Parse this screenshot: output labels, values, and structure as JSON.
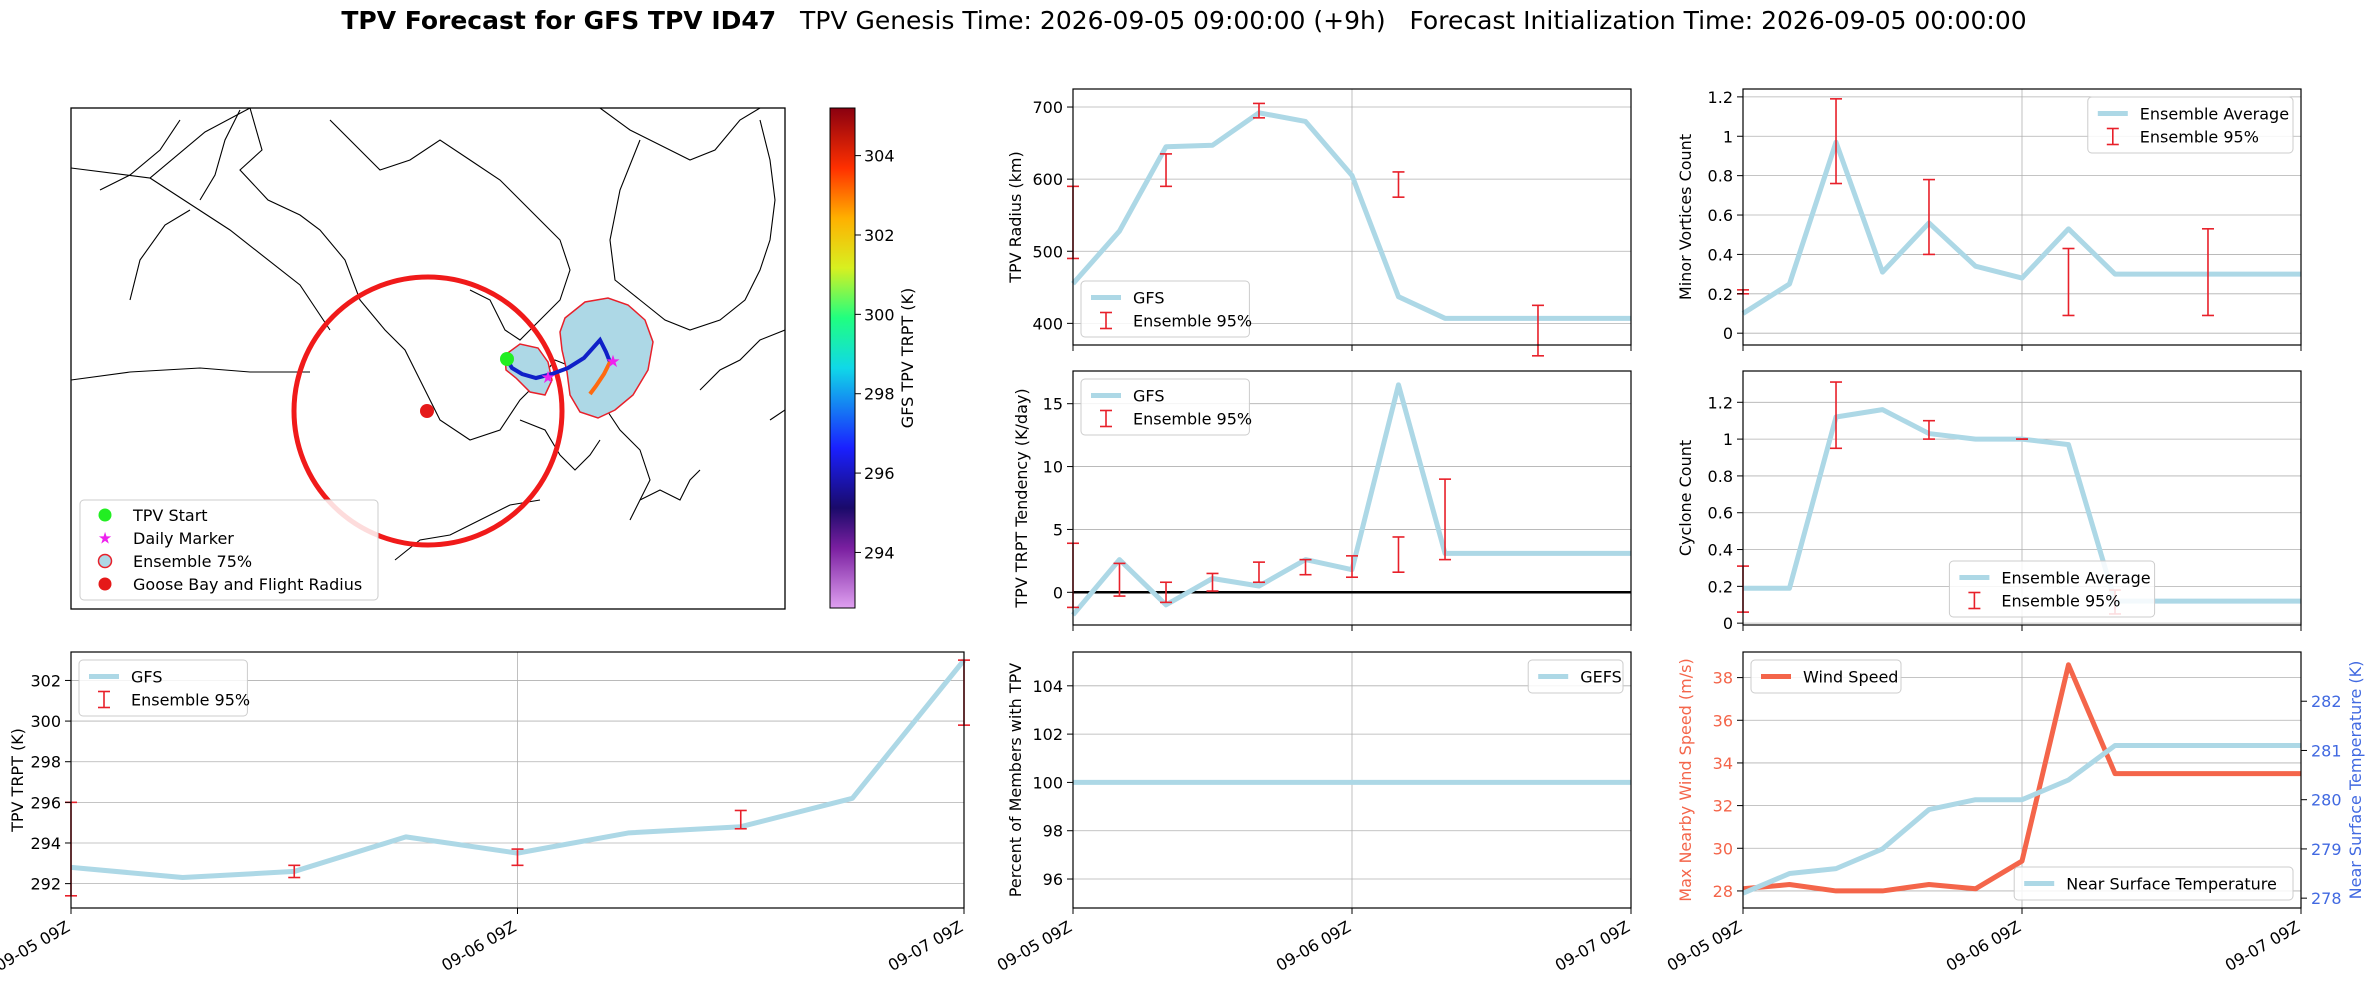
{
  "header": {
    "title": "TPV Forecast for GFS TPV ID47",
    "genesis": "TPV Genesis Time: 2026-09-05 09:00:00 (+9h)",
    "init": "Forecast Initialization Time: 2026-09-05 00:00:00"
  },
  "colors": {
    "gfs_line": "#add8e6",
    "errorbar": "#e8202a",
    "wind": "#f4654a",
    "temp_axis": "#4169e1",
    "goose_circle": "#f01a1a",
    "ensemble_fill": "#add8e6",
    "tpv_start": "#22ee22",
    "daily_marker": "#ee22ee"
  },
  "map": {
    "legend": [
      "TPV Start",
      "Daily Marker",
      "Ensemble 75%",
      "Goose Bay and Flight Radius"
    ],
    "colorbar_label": "GFS TPV TRPT (K)",
    "colorbar_ticks": [
      "304",
      "302",
      "300",
      "298",
      "296",
      "294"
    ]
  },
  "chart_data": [
    {
      "id": "radius",
      "type": "line",
      "ylabel": "TPV Radius (km)",
      "yticks": [
        400,
        500,
        600,
        700
      ],
      "ylim": [
        370,
        725
      ],
      "xlim": [
        0,
        1
      ],
      "xticks": [
        0,
        0.5,
        1
      ],
      "xticklabels": [
        "09-05 09Z",
        "09-06 09Z",
        "09-07 09Z"
      ],
      "show_xticklabels": false,
      "legend": [
        "GFS",
        "Ensemble 95%"
      ],
      "legend_loc": "lower left",
      "series": [
        {
          "name": "GFS",
          "x": [
            0,
            0.0833,
            0.1667,
            0.25,
            0.3333,
            0.4167,
            0.5,
            0.5833,
            0.6667,
            0.75,
            0.8333,
            0.9167,
            1.0
          ],
          "values": [
            455,
            528,
            645,
            647,
            692,
            680,
            605,
            437,
            407,
            407,
            407,
            407,
            407
          ]
        }
      ],
      "errorbars": [
        {
          "x": 0.0,
          "lo": 490,
          "hi": 590
        },
        {
          "x": 0.1667,
          "lo": 590,
          "hi": 635
        },
        {
          "x": 0.3333,
          "lo": 685,
          "hi": 705
        },
        {
          "x": 0.5833,
          "lo": 575,
          "hi": 610
        },
        {
          "x": 0.8333,
          "lo": 355,
          "hi": 425
        }
      ]
    },
    {
      "id": "minor",
      "type": "line",
      "ylabel": "Minor Vortices Count",
      "yticks": [
        0.0,
        0.2,
        0.4,
        0.6,
        0.8,
        1.0,
        1.2
      ],
      "ylim": [
        -0.06,
        1.24
      ],
      "xlim": [
        0,
        1
      ],
      "xticks": [
        0,
        0.5,
        1
      ],
      "xticklabels": [
        "09-05 09Z",
        "09-06 09Z",
        "09-07 09Z"
      ],
      "show_xticklabels": false,
      "legend": [
        "Ensemble Average",
        "Ensemble 95%"
      ],
      "legend_loc": "upper right",
      "series": [
        {
          "name": "Ensemble Average",
          "x": [
            0,
            0.0833,
            0.1667,
            0.25,
            0.3333,
            0.4167,
            0.5,
            0.5833,
            0.6667,
            0.75,
            0.8333,
            0.9167,
            1.0
          ],
          "values": [
            0.1,
            0.25,
            0.97,
            0.31,
            0.56,
            0.34,
            0.28,
            0.53,
            0.3,
            0.3,
            0.3,
            0.3,
            0.3
          ]
        }
      ],
      "errorbars": [
        {
          "x": 0.0,
          "lo": 0.2,
          "hi": 0.22
        },
        {
          "x": 0.1667,
          "lo": 0.76,
          "hi": 1.19
        },
        {
          "x": 0.3333,
          "lo": 0.4,
          "hi": 0.78
        },
        {
          "x": 0.5833,
          "lo": 0.09,
          "hi": 0.43
        },
        {
          "x": 0.8333,
          "lo": 0.09,
          "hi": 0.53
        }
      ]
    },
    {
      "id": "tendency",
      "type": "line",
      "ylabel": "TPV TRPT Tendency (K/day)",
      "yticks": [
        0,
        5,
        10,
        15
      ],
      "ylim": [
        -2.6,
        17.6
      ],
      "xlim": [
        0,
        1
      ],
      "xticks": [
        0,
        0.5,
        1
      ],
      "xticklabels": [
        "09-05 09Z",
        "09-06 09Z",
        "09-07 09Z"
      ],
      "show_xticklabels": false,
      "zero_line": true,
      "legend": [
        "GFS",
        "Ensemble 95%"
      ],
      "legend_loc": "upper left",
      "series": [
        {
          "name": "GFS",
          "x": [
            0,
            0.0833,
            0.1667,
            0.25,
            0.3333,
            0.4167,
            0.5,
            0.5833,
            0.6667,
            0.75,
            0.8333,
            0.9167,
            1.0
          ],
          "values": [
            -1.8,
            2.6,
            -1.0,
            1.1,
            0.5,
            2.6,
            1.8,
            16.5,
            3.1,
            3.1,
            3.1,
            3.1,
            3.1
          ]
        }
      ],
      "errorbars": [
        {
          "x": 0.0,
          "lo": -1.2,
          "hi": 3.9
        },
        {
          "x": 0.0833,
          "lo": -0.3,
          "hi": 2.3
        },
        {
          "x": 0.1667,
          "lo": -0.8,
          "hi": 0.8
        },
        {
          "x": 0.25,
          "lo": 0.1,
          "hi": 1.5
        },
        {
          "x": 0.3333,
          "lo": 0.8,
          "hi": 2.4
        },
        {
          "x": 0.4167,
          "lo": 1.4,
          "hi": 2.6
        },
        {
          "x": 0.5,
          "lo": 1.2,
          "hi": 2.9
        },
        {
          "x": 0.5833,
          "lo": 1.6,
          "hi": 4.4
        },
        {
          "x": 0.6667,
          "lo": 2.6,
          "hi": 9.0
        }
      ]
    },
    {
      "id": "cyclone",
      "type": "line",
      "ylabel": "Cyclone Count",
      "yticks": [
        0.0,
        0.2,
        0.4,
        0.6,
        0.8,
        1.0,
        1.2
      ],
      "ylim": [
        -0.01,
        1.37
      ],
      "xlim": [
        0,
        1
      ],
      "xticks": [
        0,
        0.5,
        1
      ],
      "xticklabels": [
        "09-05 09Z",
        "09-06 09Z",
        "09-07 09Z"
      ],
      "show_xticklabels": false,
      "legend": [
        "Ensemble Average",
        "Ensemble 95%"
      ],
      "legend_loc": "lower center",
      "series": [
        {
          "name": "Ensemble Average",
          "x": [
            0,
            0.0833,
            0.1667,
            0.25,
            0.3333,
            0.4167,
            0.5,
            0.5833,
            0.6667,
            0.75,
            0.8333,
            0.9167,
            1.0
          ],
          "values": [
            0.19,
            0.19,
            1.12,
            1.16,
            1.03,
            1.0,
            1.0,
            0.97,
            0.12,
            0.12,
            0.12,
            0.12,
            0.12
          ]
        }
      ],
      "errorbars": [
        {
          "x": 0.0,
          "lo": 0.06,
          "hi": 0.31
        },
        {
          "x": 0.1667,
          "lo": 0.95,
          "hi": 1.31
        },
        {
          "x": 0.3333,
          "lo": 1.0,
          "hi": 1.1
        },
        {
          "x": 0.5,
          "lo": 1.0,
          "hi": 1.0
        },
        {
          "x": 0.6667,
          "lo": 0.05,
          "hi": 0.18
        }
      ]
    },
    {
      "id": "trpt",
      "type": "line",
      "ylabel": "TPV TRPT (K)",
      "yticks": [
        292,
        294,
        296,
        298,
        300,
        302
      ],
      "ylim": [
        290.8,
        303.4
      ],
      "xlim": [
        0,
        1
      ],
      "xticks": [
        0,
        0.5,
        1
      ],
      "xticklabels": [
        "09-05 09Z",
        "09-06 09Z",
        "09-07 09Z"
      ],
      "show_xticklabels": true,
      "legend": [
        "GFS",
        "Ensemble 95%"
      ],
      "legend_loc": "upper left",
      "series": [
        {
          "name": "GFS",
          "x": [
            0,
            0.125,
            0.25,
            0.375,
            0.5,
            0.625,
            0.75,
            0.875,
            1.0
          ],
          "values": [
            292.8,
            292.3,
            292.6,
            294.3,
            293.5,
            294.5,
            294.8,
            296.2,
            303.0
          ]
        }
      ],
      "errorbars": [
        {
          "x": 0.0,
          "lo": 291.4,
          "hi": 296.0
        },
        {
          "x": 0.25,
          "lo": 292.3,
          "hi": 292.9
        },
        {
          "x": 0.5,
          "lo": 292.9,
          "hi": 293.7
        },
        {
          "x": 0.75,
          "lo": 294.7,
          "hi": 295.6
        },
        {
          "x": 1.0,
          "lo": 299.8,
          "hi": 303.0
        }
      ]
    },
    {
      "id": "percent",
      "type": "line",
      "ylabel": "Percent of Members with TPV",
      "yticks": [
        96,
        98,
        100,
        102,
        104
      ],
      "ylim": [
        94.8,
        105.4
      ],
      "xlim": [
        0,
        1
      ],
      "xticks": [
        0,
        0.5,
        1
      ],
      "xticklabels": [
        "09-05 09Z",
        "09-06 09Z",
        "09-07 09Z"
      ],
      "show_xticklabels": true,
      "legend": [
        "GEFS"
      ],
      "legend_loc": "upper right",
      "series": [
        {
          "name": "GEFS",
          "x": [
            0,
            1
          ],
          "values": [
            100,
            100
          ]
        }
      ],
      "errorbars": []
    },
    {
      "id": "wind",
      "type": "line",
      "ylabel": "Max Nearby Wind Speed (m/s)",
      "ylabel_right": "Near Surface Temperature (K)",
      "yticks": [
        28,
        30,
        32,
        34,
        36,
        38
      ],
      "ylim": [
        27.2,
        39.2
      ],
      "yticks_right": [
        278,
        279,
        280,
        281,
        282
      ],
      "ylim_right": [
        277.8,
        283.0
      ],
      "xlim": [
        0,
        1
      ],
      "xticks": [
        0,
        0.5,
        1
      ],
      "xticklabels": [
        "09-05 09Z",
        "09-06 09Z",
        "09-07 09Z"
      ],
      "show_xticklabels": true,
      "legend": [
        "Wind Speed"
      ],
      "legend_loc": "upper left",
      "legend_right": [
        "Near Surface Temperature"
      ],
      "legend_right_loc": "lower right",
      "series": [
        {
          "name": "Wind Speed",
          "axis": "left",
          "x": [
            0,
            0.0833,
            0.1667,
            0.25,
            0.3333,
            0.4167,
            0.5,
            0.5833,
            0.6667,
            0.75,
            0.8333,
            0.9167,
            1.0
          ],
          "values": [
            28.1,
            28.3,
            28.0,
            28.0,
            28.3,
            28.1,
            29.4,
            38.6,
            33.5,
            33.5,
            33.5,
            33.5,
            33.5
          ]
        },
        {
          "name": "Near Surface Temperature",
          "axis": "right",
          "x": [
            0,
            0.0833,
            0.1667,
            0.25,
            0.3333,
            0.4167,
            0.5,
            0.5833,
            0.6667,
            0.75,
            0.8333,
            0.9167,
            1.0
          ],
          "values": [
            278.1,
            278.5,
            278.6,
            279.0,
            279.8,
            280.0,
            280.0,
            280.4,
            281.1,
            281.1,
            281.1,
            281.1,
            281.1
          ]
        }
      ],
      "errorbars": []
    }
  ]
}
